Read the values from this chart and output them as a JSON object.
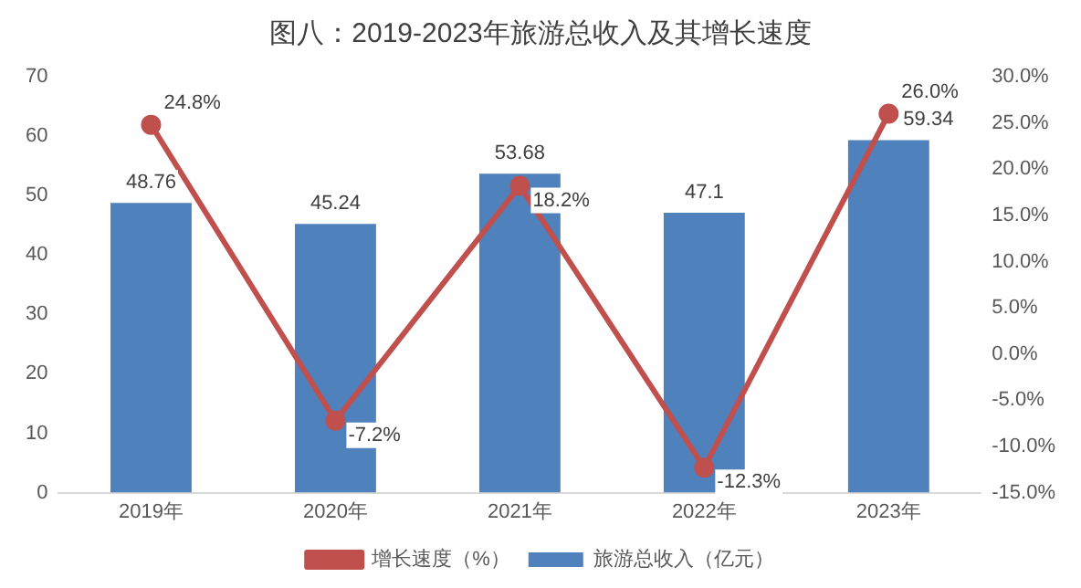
{
  "chart_data": {
    "type": "bar",
    "title": "图八：2019-2023年旅游总收入及其增长速度",
    "categories": [
      "2019年",
      "2020年",
      "2021年",
      "2022年",
      "2023年"
    ],
    "series": [
      {
        "name": "旅游总收入（亿元）",
        "color": "#4f81bd",
        "values": [
          48.76,
          45.24,
          53.68,
          47.1,
          59.34
        ],
        "value_labels": [
          "48.76",
          "45.24",
          "53.68",
          "47.1",
          "59.34"
        ]
      },
      {
        "name": "增长速度（%）",
        "type": "line",
        "axis": "y2",
        "color": "#c0504d",
        "values": [
          24.8,
          -7.2,
          18.2,
          -12.3,
          26.0
        ],
        "value_labels": [
          "24.8%",
          "-7.2%",
          "18.2%",
          "-12.3%",
          "26.0%"
        ]
      }
    ],
    "ylim": [
      0,
      70
    ],
    "yticks": [
      0,
      10,
      20,
      30,
      40,
      50,
      60,
      70
    ],
    "y2lim": [
      -15,
      30
    ],
    "y2ticks": [
      {
        "value": -15,
        "label": "-15.0%"
      },
      {
        "value": -10,
        "label": "-10.0%"
      },
      {
        "value": -5,
        "label": "-5.0%"
      },
      {
        "value": 0,
        "label": "0.0%"
      },
      {
        "value": 5,
        "label": "5.0%"
      },
      {
        "value": 10,
        "label": "10.0%"
      },
      {
        "value": 15,
        "label": "15.0%"
      },
      {
        "value": 20,
        "label": "20.0%"
      },
      {
        "value": 25,
        "label": "25.0%"
      },
      {
        "value": 30,
        "label": "30.0%"
      }
    ],
    "legend": "bottom",
    "marker": "circle",
    "line_style": "solid",
    "grid": false
  }
}
